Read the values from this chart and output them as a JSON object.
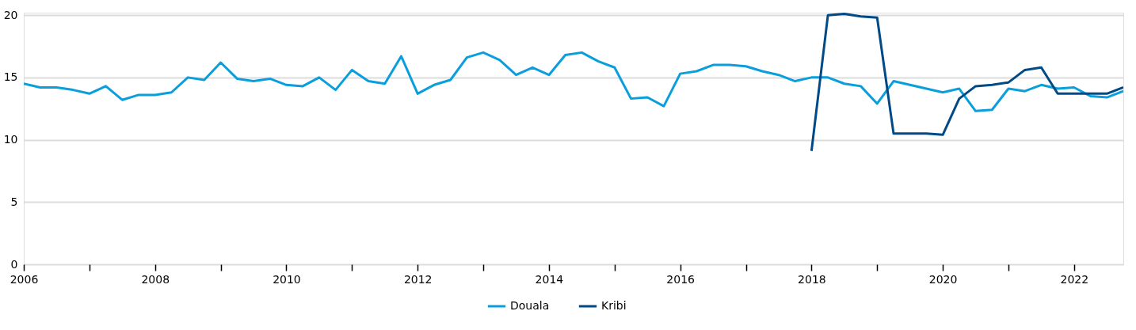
{
  "chart_data": {
    "type": "line",
    "xlim": [
      2006,
      2022.75
    ],
    "xticks": [
      2006,
      {
        "value": 2007,
        "label": null
      },
      2008,
      {
        "value": 2009,
        "label": null
      },
      2010,
      {
        "value": 2011,
        "label": null
      },
      2012,
      {
        "value": 2013,
        "label": null
      },
      2014,
      {
        "value": 2015,
        "label": null
      },
      2016,
      {
        "value": 2017,
        "label": null
      },
      2018,
      {
        "value": 2019,
        "label": null
      },
      2020,
      {
        "value": 2021,
        "label": null
      },
      2022
    ],
    "ylim": [
      0,
      20.2
    ],
    "yticks": [
      0,
      5,
      10,
      15,
      20
    ],
    "grid": "y",
    "legend": "bottom",
    "marker": "none",
    "line_style": "solid",
    "series": [
      {
        "name": "Douala",
        "color": "#0a9fdc",
        "x": [
          2006.0,
          2006.25,
          2006.5,
          2006.75,
          2007.0,
          2007.25,
          2007.5,
          2007.75,
          2008.0,
          2008.25,
          2008.5,
          2008.75,
          2009.0,
          2009.25,
          2009.5,
          2009.75,
          2010.0,
          2010.25,
          2010.5,
          2010.75,
          2011.0,
          2011.25,
          2011.5,
          2011.75,
          2012.0,
          2012.25,
          2012.5,
          2012.75,
          2013.0,
          2013.25,
          2013.5,
          2013.75,
          2014.0,
          2014.25,
          2014.5,
          2014.75,
          2015.0,
          2015.25,
          2015.5,
          2015.75,
          2016.0,
          2016.25,
          2016.5,
          2016.75,
          2017.0,
          2017.25,
          2017.5,
          2017.75,
          2018.0,
          2018.25,
          2018.5,
          2018.75,
          2019.0,
          2019.25,
          2019.5,
          2019.75,
          2020.0,
          2020.25,
          2020.5,
          2020.75,
          2021.0,
          2021.25,
          2021.5,
          2021.75,
          2022.0,
          2022.25,
          2022.5,
          2022.75
        ],
        "values": [
          14.5,
          14.2,
          14.2,
          14.0,
          13.7,
          14.3,
          13.2,
          13.6,
          13.6,
          13.8,
          15.0,
          14.8,
          16.2,
          14.9,
          14.7,
          14.9,
          14.4,
          14.3,
          15.0,
          14.0,
          15.6,
          14.7,
          14.5,
          16.7,
          13.7,
          14.4,
          14.8,
          16.6,
          17.0,
          16.4,
          15.2,
          15.8,
          15.2,
          16.8,
          17.0,
          16.3,
          15.8,
          13.3,
          13.4,
          12.7,
          15.3,
          15.5,
          16.0,
          16.0,
          15.9,
          15.5,
          15.2,
          14.7,
          15.0,
          15.0,
          14.5,
          14.3,
          12.9,
          14.7,
          14.4,
          14.1,
          13.8,
          14.1,
          12.3,
          12.4,
          14.1,
          13.9,
          14.4,
          14.1,
          14.2,
          13.5,
          13.4,
          13.9
        ]
      },
      {
        "name": "Kribi",
        "color": "#004a87",
        "x": [
          2018.0,
          2018.25,
          2018.5,
          2018.75,
          2019.0,
          2019.25,
          2019.5,
          2019.75,
          2020.0,
          2020.25,
          2020.5,
          2020.75,
          2021.0,
          2021.25,
          2021.5,
          2021.75,
          2022.0,
          2022.25,
          2022.5,
          2022.75
        ],
        "values": [
          9.1,
          20.0,
          20.1,
          19.9,
          19.8,
          10.5,
          10.5,
          10.5,
          10.4,
          13.3,
          14.3,
          14.4,
          14.6,
          15.6,
          15.8,
          13.7,
          13.7,
          13.7,
          13.7,
          14.2
        ]
      }
    ]
  }
}
